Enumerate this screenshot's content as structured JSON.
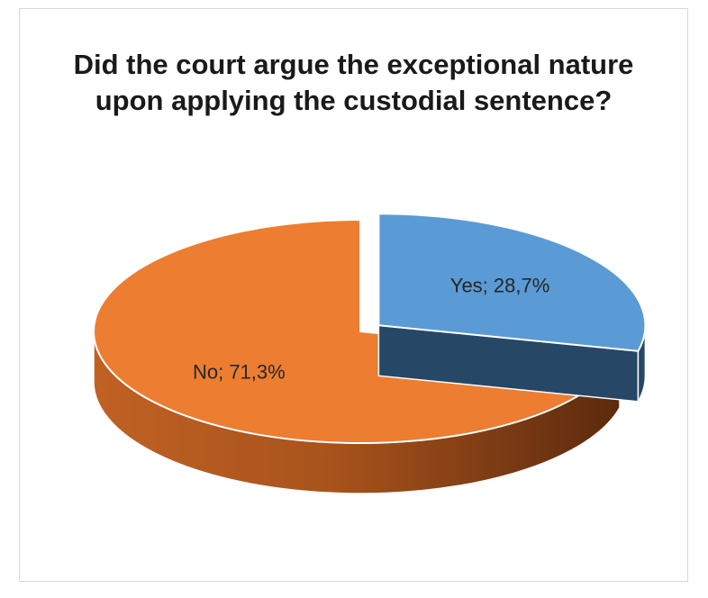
{
  "chart_data": {
    "type": "pie",
    "style": "3d-exploded",
    "title_lines": [
      "Did the court argue the exceptional nature",
      "upon applying the custodial sentence?"
    ],
    "slices": [
      {
        "name": "Yes",
        "value": 28.7,
        "label": "Yes;  28,7%",
        "color": "#5b9bd5",
        "side_color": "#264766",
        "exploded": true
      },
      {
        "name": "No",
        "value": 71.3,
        "label": "No;  71,3%",
        "color": "#ed7d31",
        "side_color": "#a8531c",
        "exploded": false
      }
    ],
    "legend": "none"
  }
}
